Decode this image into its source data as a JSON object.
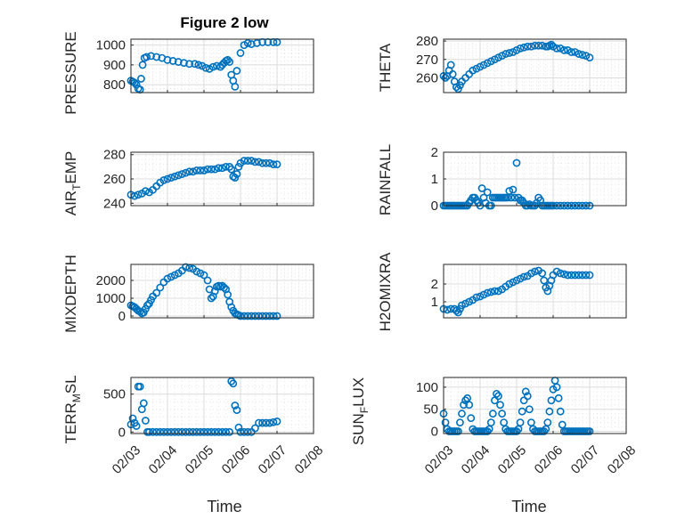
{
  "figure": {
    "title": "Figure 2 low",
    "marker_color": "#0072BD"
  },
  "chart_data": [
    {
      "type": "scatter",
      "title": "Figure 2 low",
      "ylabel": "PRESSURE",
      "ylim": [
        760,
        1030
      ],
      "yticks": [
        800,
        900,
        1000
      ],
      "ytick_labels": [
        "800",
        "900",
        "1000"
      ],
      "xlim": [
        "02/03",
        "02/08"
      ],
      "xticks": [
        "02/03",
        "02/04",
        "02/05",
        "02/06",
        "02/07",
        "02/08"
      ],
      "grid": "major+minor",
      "x": [
        3.0,
        3.05,
        3.1,
        3.15,
        3.2,
        3.25,
        3.28,
        3.32,
        3.37,
        3.43,
        3.55,
        3.7,
        3.85,
        4.0,
        4.15,
        4.3,
        4.45,
        4.6,
        4.75,
        4.85,
        4.95,
        5.05,
        5.15,
        5.25,
        5.35,
        5.45,
        5.5,
        5.55,
        5.6,
        5.65,
        5.7,
        5.75,
        5.8,
        5.85,
        5.9,
        6.0,
        6.1,
        6.2,
        6.3,
        6.45,
        6.6,
        6.75,
        6.9,
        7.0
      ],
      "y": [
        820,
        815,
        810,
        800,
        780,
        775,
        830,
        900,
        935,
        940,
        945,
        940,
        935,
        925,
        920,
        915,
        910,
        905,
        905,
        900,
        895,
        885,
        880,
        890,
        895,
        890,
        900,
        910,
        920,
        925,
        915,
        850,
        820,
        790,
        870,
        960,
        1000,
        1010,
        1005,
        1010,
        1015,
        1015,
        1015,
        1015
      ]
    },
    {
      "type": "scatter",
      "ylabel": "THETA",
      "ylim": [
        252,
        281
      ],
      "yticks": [
        260,
        270,
        280
      ],
      "ytick_labels": [
        "260",
        "270",
        "280"
      ],
      "xlim": [
        "02/03",
        "02/08"
      ],
      "xticks": [
        "02/03",
        "02/04",
        "02/05",
        "02/06",
        "02/07",
        "02/08"
      ],
      "grid": "major+minor",
      "x": [
        3.0,
        3.05,
        3.1,
        3.15,
        3.2,
        3.25,
        3.3,
        3.35,
        3.4,
        3.45,
        3.5,
        3.6,
        3.7,
        3.8,
        3.9,
        4.0,
        4.1,
        4.2,
        4.3,
        4.4,
        4.5,
        4.6,
        4.7,
        4.8,
        4.9,
        5.0,
        5.1,
        5.2,
        5.3,
        5.4,
        5.5,
        5.6,
        5.7,
        5.8,
        5.85,
        5.9,
        5.95,
        6.0,
        6.1,
        6.2,
        6.3,
        6.4,
        6.5,
        6.6,
        6.7,
        6.8,
        6.9,
        7.0
      ],
      "y": [
        261,
        260,
        261,
        264,
        267,
        262,
        258,
        255,
        254,
        256,
        258,
        260,
        262,
        264,
        265,
        266,
        267,
        268,
        269,
        270,
        271,
        272,
        273,
        273.5,
        274,
        275,
        276,
        276.5,
        277,
        277,
        277.5,
        277.5,
        277.5,
        277,
        277,
        277.5,
        278,
        277,
        276,
        276,
        275,
        275,
        274,
        274,
        273,
        272.5,
        272,
        271
      ]
    },
    {
      "type": "scatter",
      "ylabel": "AIR_TEMP",
      "ylim": [
        238,
        282
      ],
      "yticks": [
        240,
        260,
        280
      ],
      "ytick_labels": [
        "240",
        "260",
        "280"
      ],
      "xlim": [
        "02/03",
        "02/08"
      ],
      "xticks": [
        "02/03",
        "02/04",
        "02/05",
        "02/06",
        "02/07",
        "02/08"
      ],
      "grid": "major+minor",
      "x": [
        3.0,
        3.1,
        3.2,
        3.3,
        3.4,
        3.5,
        3.6,
        3.7,
        3.8,
        3.9,
        4.0,
        4.1,
        4.2,
        4.3,
        4.4,
        4.5,
        4.6,
        4.7,
        4.8,
        4.9,
        5.0,
        5.1,
        5.2,
        5.3,
        5.4,
        5.5,
        5.6,
        5.7,
        5.75,
        5.8,
        5.85,
        5.9,
        5.95,
        6.0,
        6.1,
        6.2,
        6.3,
        6.4,
        6.5,
        6.6,
        6.7,
        6.8,
        6.9,
        7.0
      ],
      "y": [
        247,
        246,
        247,
        248,
        250,
        249,
        251,
        254,
        257,
        259,
        260,
        261,
        262,
        263,
        264,
        265,
        266,
        266,
        267,
        267,
        267,
        268,
        268,
        268,
        269,
        269,
        270,
        270,
        268,
        262,
        261,
        264,
        270,
        273,
        275,
        275,
        275,
        274,
        274,
        273,
        273,
        273,
        272,
        272
      ]
    },
    {
      "type": "scatter",
      "ylabel": "RAINFALL",
      "ylim": [
        0,
        2
      ],
      "yticks": [
        0,
        1,
        2
      ],
      "ytick_labels": [
        "0",
        "1",
        "2"
      ],
      "xlim": [
        "02/03",
        "02/08"
      ],
      "xticks": [
        "02/03",
        "02/04",
        "02/05",
        "02/06",
        "02/07",
        "02/08"
      ],
      "grid": "major+minor",
      "x": [
        3.0,
        3.05,
        3.1,
        3.15,
        3.2,
        3.25,
        3.3,
        3.35,
        3.4,
        3.45,
        3.5,
        3.55,
        3.6,
        3.65,
        3.7,
        3.75,
        3.8,
        3.85,
        3.9,
        3.95,
        4.0,
        4.05,
        4.1,
        4.15,
        4.2,
        4.25,
        4.3,
        4.35,
        4.4,
        4.45,
        4.5,
        4.55,
        4.6,
        4.65,
        4.7,
        4.75,
        4.8,
        4.85,
        4.9,
        4.95,
        5.0,
        5.05,
        5.1,
        5.15,
        5.2,
        5.25,
        5.3,
        5.35,
        5.4,
        5.45,
        5.5,
        5.55,
        5.6,
        5.65,
        5.7,
        5.75,
        5.8,
        5.85,
        5.9,
        5.95,
        6.0,
        6.1,
        6.2,
        6.3,
        6.4,
        6.5,
        6.6,
        6.7,
        6.8,
        6.9,
        7.0
      ],
      "y": [
        0,
        0,
        0,
        0,
        0,
        0,
        0,
        0,
        0,
        0,
        0,
        0,
        0,
        0,
        0.1,
        0.2,
        0.3,
        0.3,
        0.2,
        0.1,
        0,
        0.65,
        0.3,
        0.1,
        0.5,
        0,
        0,
        0.3,
        0.3,
        0.3,
        0.3,
        0.3,
        0.3,
        0.3,
        0.3,
        0.3,
        0.55,
        0.3,
        0.6,
        0.3,
        1.6,
        0.3,
        0.2,
        0.2,
        0.1,
        0,
        0,
        0.05,
        0,
        0,
        0,
        0.1,
        0.3,
        0.2,
        0,
        0,
        0,
        0,
        0,
        0,
        0,
        0,
        0,
        0,
        0,
        0,
        0,
        0,
        0,
        0,
        0
      ]
    },
    {
      "type": "scatter",
      "ylabel": "MIXDEPTH",
      "ylim": [
        -100,
        2900
      ],
      "yticks": [
        0,
        1000,
        2000
      ],
      "ytick_labels": [
        "0",
        "1000",
        "2000"
      ],
      "xlim": [
        "02/03",
        "02/08"
      ],
      "xticks": [
        "02/03",
        "02/04",
        "02/05",
        "02/06",
        "02/07",
        "02/08"
      ],
      "grid": "major+minor",
      "x": [
        3.0,
        3.05,
        3.1,
        3.15,
        3.2,
        3.25,
        3.3,
        3.35,
        3.4,
        3.45,
        3.5,
        3.55,
        3.6,
        3.7,
        3.8,
        3.9,
        4.0,
        4.1,
        4.2,
        4.3,
        4.4,
        4.5,
        4.6,
        4.7,
        4.8,
        4.9,
        5.0,
        5.1,
        5.15,
        5.2,
        5.25,
        5.3,
        5.35,
        5.4,
        5.45,
        5.5,
        5.55,
        5.6,
        5.65,
        5.7,
        5.75,
        5.8,
        5.85,
        5.9,
        5.95,
        6.0,
        6.1,
        6.2,
        6.3,
        6.4,
        6.5,
        6.6,
        6.7,
        6.8,
        6.9,
        7.0
      ],
      "y": [
        600,
        550,
        500,
        400,
        300,
        250,
        150,
        200,
        400,
        600,
        700,
        900,
        1100,
        1300,
        1600,
        1900,
        2100,
        2200,
        2300,
        2400,
        2550,
        2750,
        2700,
        2650,
        2500,
        2400,
        2300,
        2000,
        1500,
        1000,
        1100,
        1400,
        1650,
        1700,
        1650,
        1700,
        1600,
        1500,
        1200,
        800,
        500,
        300,
        150,
        100,
        50,
        0,
        0,
        0,
        0,
        0,
        0,
        0,
        0,
        0,
        0,
        0
      ]
    },
    {
      "type": "scatter",
      "ylabel": "H2OMIXRA",
      "ylim": [
        0.1,
        3.1
      ],
      "yticks": [
        1,
        2
      ],
      "ytick_labels": [
        "1",
        "2"
      ],
      "xlim": [
        "02/03",
        "02/08"
      ],
      "xticks": [
        "02/03",
        "02/04",
        "02/05",
        "02/06",
        "02/07",
        "02/08"
      ],
      "grid": "major+minor",
      "x": [
        3.0,
        3.1,
        3.2,
        3.3,
        3.35,
        3.4,
        3.45,
        3.5,
        3.6,
        3.7,
        3.8,
        3.9,
        4.0,
        4.1,
        4.2,
        4.3,
        4.4,
        4.5,
        4.6,
        4.7,
        4.8,
        4.9,
        5.0,
        5.1,
        5.2,
        5.3,
        5.4,
        5.5,
        5.6,
        5.7,
        5.75,
        5.8,
        5.85,
        5.9,
        5.95,
        6.0,
        6.1,
        6.2,
        6.3,
        6.4,
        6.5,
        6.6,
        6.7,
        6.8,
        6.9,
        7.0
      ],
      "y": [
        0.6,
        0.55,
        0.6,
        0.6,
        0.5,
        0.4,
        0.6,
        0.8,
        0.9,
        1.0,
        1.1,
        1.25,
        1.3,
        1.4,
        1.5,
        1.55,
        1.6,
        1.6,
        1.7,
        1.85,
        2.0,
        2.1,
        2.2,
        2.3,
        2.4,
        2.45,
        2.6,
        2.7,
        2.75,
        2.6,
        2.2,
        1.8,
        1.6,
        1.9,
        2.2,
        2.5,
        2.7,
        2.6,
        2.55,
        2.5,
        2.5,
        2.5,
        2.5,
        2.5,
        2.5,
        2.5
      ]
    },
    {
      "type": "scatter",
      "ylabel": "TERR_MSL",
      "ylim": [
        -20,
        720
      ],
      "yticks": [
        0,
        500
      ],
      "ytick_labels": [
        "0",
        "500"
      ],
      "xlim": [
        "02/03",
        "02/08"
      ],
      "xticks": [
        "02/03",
        "02/04",
        "02/05",
        "02/06",
        "02/07",
        "02/08"
      ],
      "grid": "major+minor",
      "x": [
        3.0,
        3.05,
        3.1,
        3.15,
        3.2,
        3.25,
        3.3,
        3.35,
        3.4,
        3.45,
        3.5,
        3.6,
        3.7,
        3.8,
        3.9,
        4.0,
        4.1,
        4.2,
        4.3,
        4.4,
        4.5,
        4.6,
        4.7,
        4.8,
        4.9,
        5.0,
        5.1,
        5.2,
        5.3,
        5.4,
        5.5,
        5.6,
        5.7,
        5.75,
        5.8,
        5.85,
        5.9,
        5.95,
        6.0,
        6.1,
        6.2,
        6.3,
        6.4,
        6.5,
        6.6,
        6.7,
        6.8,
        6.9,
        7.0
      ],
      "y": [
        100,
        180,
        120,
        80,
        600,
        600,
        300,
        380,
        150,
        0,
        0,
        0,
        0,
        0,
        0,
        0,
        0,
        0,
        0,
        0,
        0,
        0,
        0,
        0,
        0,
        0,
        0,
        0,
        0,
        0,
        0,
        0,
        0,
        670,
        640,
        350,
        290,
        60,
        0,
        0,
        0,
        0,
        50,
        120,
        120,
        120,
        120,
        130,
        140
      ]
    },
    {
      "type": "scatter",
      "ylabel": "SUN_FLUX",
      "ylim": [
        -5,
        122
      ],
      "yticks": [
        0,
        50,
        100
      ],
      "ytick_labels": [
        "0",
        "50",
        "100"
      ],
      "xlim": [
        "02/03",
        "02/08"
      ],
      "xticks": [
        "02/03",
        "02/04",
        "02/05",
        "02/06",
        "02/07",
        "02/08"
      ],
      "grid": "major+minor",
      "x": [
        3.0,
        3.05,
        3.1,
        3.15,
        3.2,
        3.25,
        3.3,
        3.35,
        3.4,
        3.45,
        3.5,
        3.55,
        3.6,
        3.65,
        3.7,
        3.75,
        3.8,
        3.85,
        3.9,
        3.95,
        4.0,
        4.05,
        4.1,
        4.15,
        4.2,
        4.25,
        4.3,
        4.35,
        4.4,
        4.45,
        4.5,
        4.55,
        4.6,
        4.65,
        4.7,
        4.75,
        4.8,
        4.85,
        4.9,
        4.95,
        5.0,
        5.05,
        5.1,
        5.15,
        5.2,
        5.25,
        5.3,
        5.35,
        5.4,
        5.45,
        5.5,
        5.55,
        5.6,
        5.65,
        5.7,
        5.75,
        5.8,
        5.85,
        5.9,
        5.95,
        6.0,
        6.05,
        6.1,
        6.15,
        6.2,
        6.25,
        6.3,
        6.35,
        6.4,
        6.45,
        6.5,
        6.55,
        6.6,
        6.65,
        6.7,
        6.75,
        6.8,
        6.85,
        6.9,
        6.95,
        7.0
      ],
      "y": [
        40,
        20,
        5,
        0,
        0,
        0,
        0,
        0,
        0,
        20,
        40,
        60,
        70,
        75,
        60,
        30,
        5,
        0,
        0,
        0,
        0,
        0,
        0,
        0,
        0,
        5,
        20,
        40,
        70,
        85,
        80,
        60,
        40,
        20,
        5,
        0,
        0,
        0,
        0,
        0,
        0,
        5,
        20,
        45,
        70,
        90,
        80,
        50,
        20,
        5,
        0,
        0,
        0,
        0,
        0,
        0,
        5,
        20,
        45,
        70,
        95,
        115,
        100,
        75,
        45,
        15,
        0,
        0,
        0,
        0,
        0,
        0,
        0,
        0,
        0,
        0,
        0,
        0,
        0,
        0,
        0
      ]
    }
  ]
}
